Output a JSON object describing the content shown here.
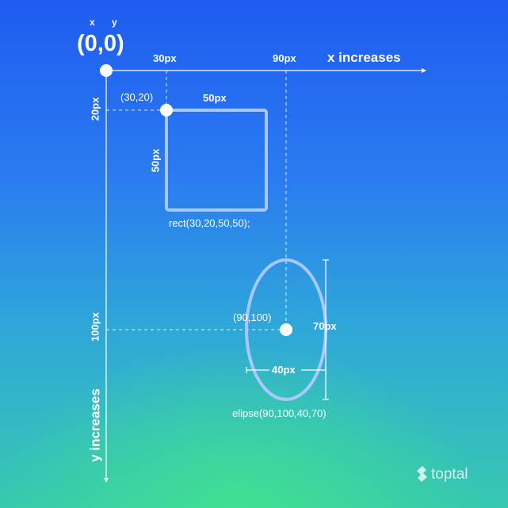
{
  "axes": {
    "x_letter": "x",
    "y_letter": "y",
    "origin_label": "(0,0)",
    "x_direction_label": "x increases",
    "y_direction_label": "y increases"
  },
  "ticks": {
    "x30": "30px",
    "x90": "90px",
    "y20": "20px",
    "y100": "100px"
  },
  "rect": {
    "corner_label": "(30,20)",
    "width_label": "50px",
    "height_label": "50px",
    "call": "rect(30,20,50,50);"
  },
  "ellipse": {
    "center_label": "(90,100)",
    "height_label": "70px",
    "width_label": "40px",
    "call": "elipse(90,100,40,70)"
  },
  "brand": {
    "name": "toptal"
  },
  "colors": {
    "shape_stroke": "#a8c8ff",
    "text": "#ffffff"
  }
}
